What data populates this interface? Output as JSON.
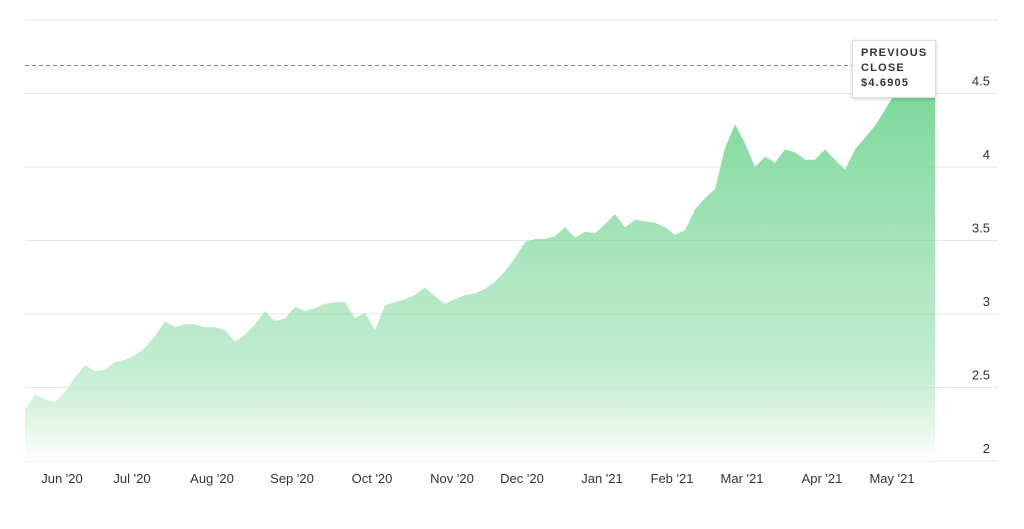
{
  "chart_data": {
    "type": "area",
    "categories": [
      null,
      null,
      null,
      null,
      "Jun '20",
      null,
      null,
      null,
      null,
      null,
      null,
      "Jul '20",
      null,
      null,
      null,
      null,
      null,
      null,
      null,
      "Aug '20",
      null,
      null,
      null,
      null,
      null,
      null,
      null,
      "Sep '20",
      null,
      null,
      null,
      null,
      null,
      null,
      null,
      "Oct '20",
      null,
      null,
      null,
      null,
      null,
      null,
      null,
      "Nov '20",
      null,
      null,
      null,
      null,
      null,
      null,
      "Dec '20",
      null,
      null,
      null,
      null,
      null,
      null,
      null,
      "Jan '21",
      null,
      null,
      null,
      null,
      null,
      null,
      "Feb '21",
      null,
      null,
      null,
      null,
      null,
      null,
      "Mar '21",
      null,
      null,
      null,
      null,
      null,
      null,
      null,
      "Apr '21",
      null,
      null,
      null,
      null,
      null,
      null,
      "May '21",
      null,
      null,
      null,
      null
    ],
    "values": [
      2.35,
      2.45,
      2.42,
      2.4,
      2.47,
      2.57,
      2.65,
      2.61,
      2.62,
      2.67,
      2.69,
      2.72,
      2.77,
      2.85,
      2.95,
      2.91,
      2.93,
      2.93,
      2.91,
      2.91,
      2.89,
      2.81,
      2.86,
      2.93,
      3.02,
      2.95,
      2.97,
      3.05,
      3.02,
      3.04,
      3.07,
      3.08,
      3.08,
      2.97,
      3.01,
      2.89,
      3.06,
      3.08,
      3.1,
      3.13,
      3.18,
      3.12,
      3.07,
      3.1,
      3.13,
      3.14,
      3.17,
      3.22,
      3.29,
      3.38,
      3.49,
      3.51,
      3.51,
      3.53,
      3.59,
      3.52,
      3.56,
      3.55,
      3.61,
      3.68,
      3.59,
      3.64,
      3.63,
      3.62,
      3.59,
      3.54,
      3.57,
      3.71,
      3.79,
      3.85,
      4.13,
      4.29,
      4.16,
      4.0,
      4.07,
      4.03,
      4.12,
      4.1,
      4.05,
      4.05,
      4.12,
      4.05,
      3.98,
      4.12,
      4.2,
      4.28,
      4.39,
      4.5,
      4.52,
      4.51,
      4.51,
      4.51
    ],
    "color": "#7dd89a",
    "ylim": [
      2,
      5
    ],
    "yticks": [
      2,
      2.5,
      3,
      3.5,
      4,
      4.5
    ],
    "grid": true,
    "previous_close": {
      "label": "PREVIOUS CLOSE",
      "value": 4.6905,
      "value_label": "$4.6905"
    }
  }
}
